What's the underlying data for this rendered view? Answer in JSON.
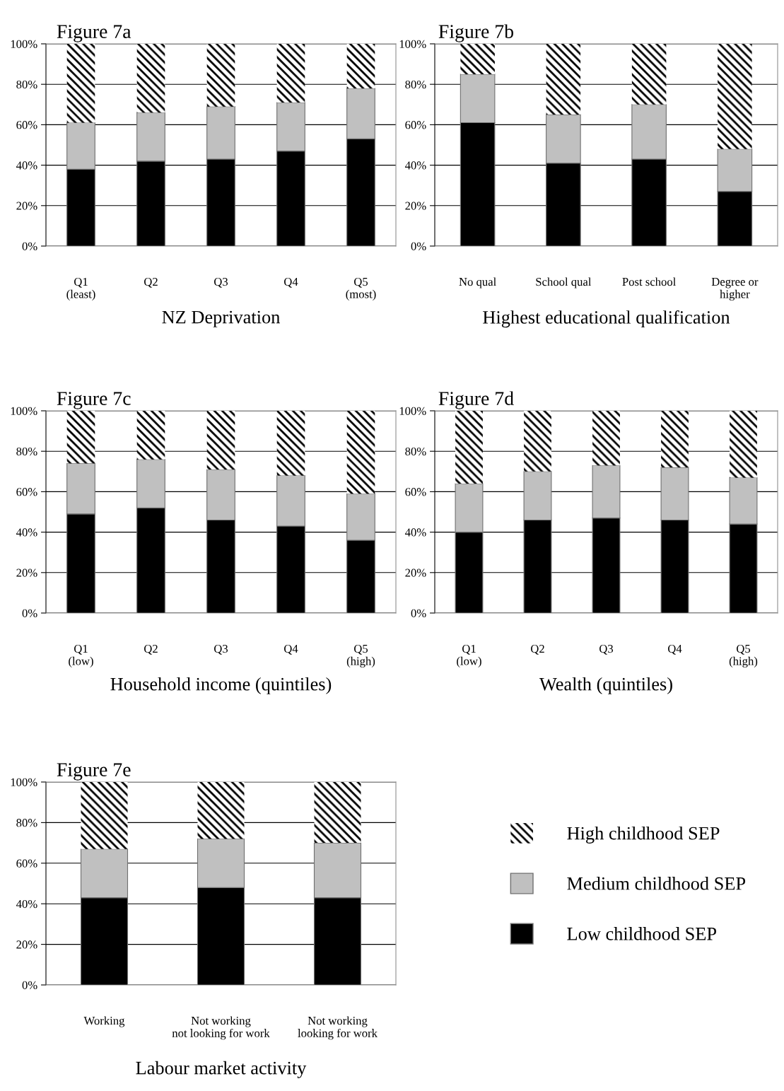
{
  "chart_data": [
    {
      "type": "bar",
      "stacked": true,
      "title": "Figure 7a",
      "xlabel": "NZ Deprivation",
      "categories": [
        "Q1\n(least)",
        "Q2",
        "Q3",
        "Q4",
        "Q5\n(most)"
      ],
      "ylim": [
        0,
        100
      ],
      "yticks": [
        {
          "value": 0,
          "label": "0%"
        },
        {
          "value": 20,
          "label": "20%"
        },
        {
          "value": 40,
          "label": "40%"
        },
        {
          "value": 60,
          "label": "60%"
        },
        {
          "value": 80,
          "label": "80%"
        },
        {
          "value": 100,
          "label": "100%"
        }
      ],
      "grid": "y",
      "legend": false,
      "series": [
        {
          "color": "#000000",
          "values": [
            38,
            42,
            43,
            47,
            53
          ]
        },
        {
          "color": "#c0c0c0",
          "values": [
            23,
            24,
            26,
            24,
            25
          ]
        },
        {
          "color": "#ffffff",
          "values": [
            39,
            34,
            31,
            29,
            22
          ]
        }
      ]
    },
    {
      "type": "bar",
      "stacked": true,
      "title": "Figure 7b",
      "xlabel": "Highest educational qualification",
      "categories": [
        "No qual",
        "School qual",
        "Post school",
        "Degree or\nhigher"
      ],
      "ylim": [
        0,
        100
      ],
      "yticks": [
        {
          "value": 0,
          "label": "0%"
        },
        {
          "value": 20,
          "label": "20%"
        },
        {
          "value": 40,
          "label": "40%"
        },
        {
          "value": 60,
          "label": "60%"
        },
        {
          "value": 80,
          "label": "80%"
        },
        {
          "value": 100,
          "label": "100%"
        }
      ],
      "grid": "y",
      "legend": false,
      "series": [
        {
          "color": "#000000",
          "values": [
            61,
            41,
            43,
            27
          ]
        },
        {
          "color": "#c0c0c0",
          "values": [
            24,
            24,
            27,
            21
          ]
        },
        {
          "color": "#ffffff",
          "values": [
            15,
            35,
            30,
            52
          ]
        }
      ]
    },
    {
      "type": "bar",
      "stacked": true,
      "title": "Figure 7c",
      "xlabel": "Household income (quintiles)",
      "categories": [
        "Q1\n(low)",
        "Q2",
        "Q3",
        "Q4",
        "Q5\n(high)"
      ],
      "ylim": [
        0,
        100
      ],
      "yticks": [
        {
          "value": 0,
          "label": "0%"
        },
        {
          "value": 20,
          "label": "20%"
        },
        {
          "value": 40,
          "label": "40%"
        },
        {
          "value": 60,
          "label": "60%"
        },
        {
          "value": 80,
          "label": "80%"
        },
        {
          "value": 100,
          "label": "100%"
        }
      ],
      "grid": "y",
      "legend": false,
      "series": [
        {
          "color": "#000000",
          "values": [
            49,
            52,
            46,
            43,
            36
          ]
        },
        {
          "color": "#c0c0c0",
          "values": [
            25,
            24,
            25,
            25,
            23
          ]
        },
        {
          "color": "#ffffff",
          "values": [
            26,
            24,
            29,
            32,
            41
          ]
        }
      ]
    },
    {
      "type": "bar",
      "stacked": true,
      "title": "Figure 7d",
      "xlabel": "Wealth (quintiles)",
      "categories": [
        "Q1\n(low)",
        "Q2",
        "Q3",
        "Q4",
        "Q5\n(high)"
      ],
      "ylim": [
        0,
        100
      ],
      "yticks": [
        {
          "value": 0,
          "label": "0%"
        },
        {
          "value": 20,
          "label": "20%"
        },
        {
          "value": 40,
          "label": "40%"
        },
        {
          "value": 60,
          "label": "60%"
        },
        {
          "value": 80,
          "label": "80%"
        },
        {
          "value": 100,
          "label": "100%"
        }
      ],
      "grid": "y",
      "legend": false,
      "series": [
        {
          "color": "#000000",
          "values": [
            40,
            46,
            47,
            46,
            44
          ]
        },
        {
          "color": "#c0c0c0",
          "values": [
            24,
            24,
            26,
            26,
            23
          ]
        },
        {
          "color": "#ffffff",
          "values": [
            36,
            30,
            27,
            28,
            33
          ]
        }
      ]
    },
    {
      "type": "bar",
      "stacked": true,
      "title": "Figure 7e",
      "xlabel": "Labour market activity",
      "categories": [
        "Working",
        "Not working\nnot looking for work",
        "Not working\nlooking for work"
      ],
      "ylim": [
        0,
        100
      ],
      "yticks": [
        {
          "value": 0,
          "label": "0%"
        },
        {
          "value": 20,
          "label": "20%"
        },
        {
          "value": 40,
          "label": "40%"
        },
        {
          "value": 60,
          "label": "60%"
        },
        {
          "value": 80,
          "label": "80%"
        },
        {
          "value": 100,
          "label": "100%"
        }
      ],
      "grid": "y",
      "legend": "right",
      "series": [
        {
          "name": "Low childhood SEP",
          "color": "#000000",
          "values": [
            43,
            48,
            43
          ]
        },
        {
          "name": "Medium childhood SEP",
          "color": "#c0c0c0",
          "values": [
            24,
            24,
            27
          ]
        },
        {
          "name": "High childhood SEP",
          "color": "#ffffff",
          "values": [
            33,
            28,
            30
          ]
        }
      ]
    }
  ]
}
